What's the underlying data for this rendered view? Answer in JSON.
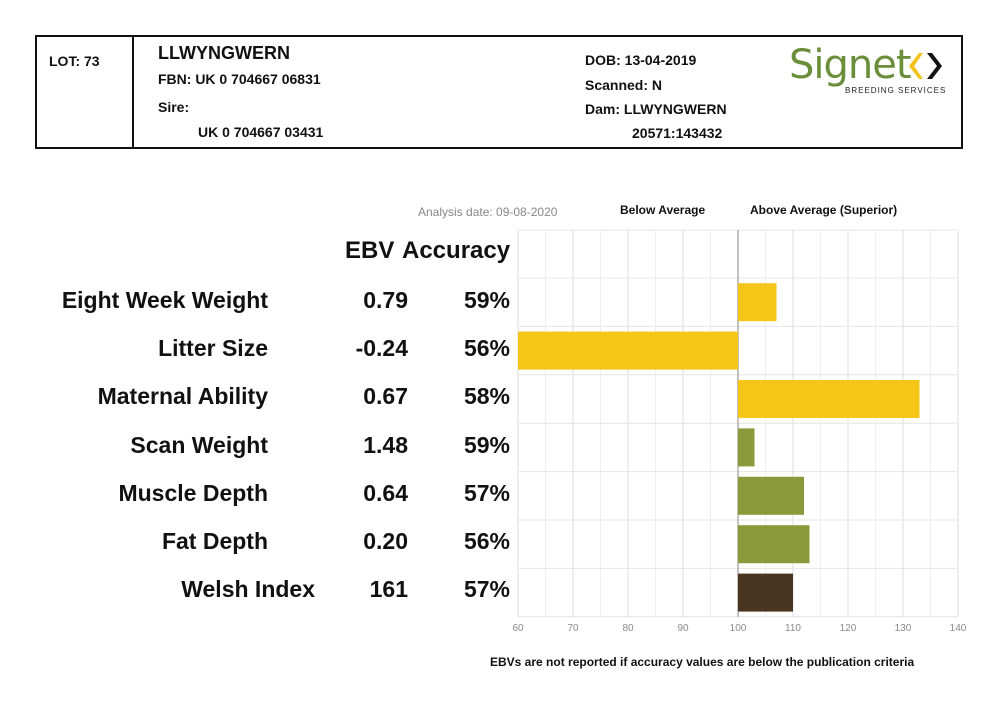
{
  "header": {
    "lot": "LOT: 73",
    "name": "LLWYNGWERN",
    "fbn": "FBN: UK 0 704667 06831",
    "sire_label": "Sire:",
    "sire_value": "UK 0 704667 03431",
    "dob": "DOB: 13-04-2019",
    "scanned": "Scanned: N",
    "dam": "Dam: LLWYNGWERN",
    "dam_id": "20571:143432",
    "logo": {
      "word": "Signet",
      "subtitle": "BREEDING SERVICES",
      "color": "#6b8e3a",
      "mark_color": "#f2c21b"
    }
  },
  "labels": {
    "analysis_date": "Analysis date: 09-08-2020",
    "below_average": "Below Average",
    "above_average": "Above Average (Superior)",
    "col_ebv": "EBV",
    "col_accuracy": "Accuracy",
    "footnote": "EBVs are not reported if accuracy values are below the publication criteria"
  },
  "traits": [
    {
      "name": "Eight Week Weight",
      "ebv": "0.79",
      "accuracy": "59%"
    },
    {
      "name": "Litter Size",
      "ebv": "-0.24",
      "accuracy": "56%"
    },
    {
      "name": "Maternal Ability",
      "ebv": "0.67",
      "accuracy": "58%"
    },
    {
      "name": "Scan Weight",
      "ebv": "1.48",
      "accuracy": "59%"
    },
    {
      "name": "Muscle Depth",
      "ebv": "0.64",
      "accuracy": "57%"
    },
    {
      "name": "Fat Depth",
      "ebv": "0.20",
      "accuracy": "56%"
    },
    {
      "name": "Welsh Index",
      "ebv": "161",
      "accuracy": "57%"
    }
  ],
  "chart_data": {
    "type": "bar",
    "orientation": "horizontal",
    "baseline": 100,
    "xlim": [
      60,
      140
    ],
    "xticks": [
      "60",
      "70",
      "80",
      "90",
      "100",
      "110",
      "120",
      "130",
      "140"
    ],
    "grid": true,
    "categories": [
      "Eight Week Weight",
      "Litter Size",
      "Maternal Ability",
      "Scan Weight",
      "Muscle Depth",
      "Fat Depth",
      "Welsh Index"
    ],
    "values": [
      107,
      60,
      133,
      103,
      112,
      113,
      110
    ],
    "colors": [
      "#f5c518",
      "#f5c518",
      "#f5c518",
      "#8a9a3a",
      "#8a9a3a",
      "#8a9a3a",
      "#4a3520"
    ]
  }
}
